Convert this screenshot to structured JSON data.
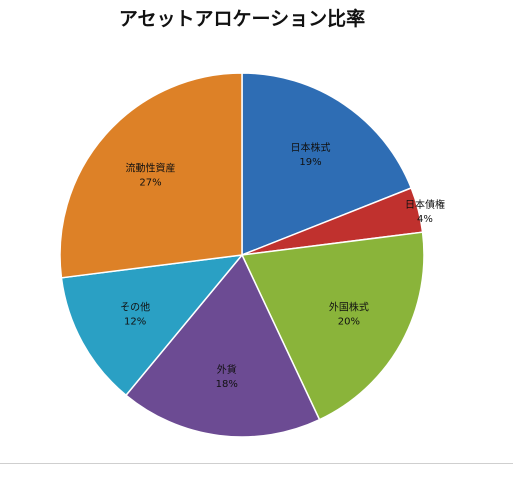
{
  "chart_data": {
    "type": "pie",
    "title": "アセットアロケーション比率",
    "slices": [
      {
        "label": "日本株式",
        "value": 19,
        "value_label": "19%",
        "color": "#2e6db4"
      },
      {
        "label": "日本債権",
        "value": 4,
        "value_label": "4%",
        "color": "#c0312e"
      },
      {
        "label": "外国株式",
        "value": 20,
        "value_label": "20%",
        "color": "#8ab43a"
      },
      {
        "label": "外貨",
        "value": 18,
        "value_label": "18%",
        "color": "#6c4b93"
      },
      {
        "label": "その他",
        "value": 12,
        "value_label": "12%",
        "color": "#2aa0c4"
      },
      {
        "label": "流動性資産",
        "value": 27,
        "value_label": "27%",
        "color": "#dd8127"
      }
    ],
    "legend": "none",
    "labels_inside": true
  }
}
